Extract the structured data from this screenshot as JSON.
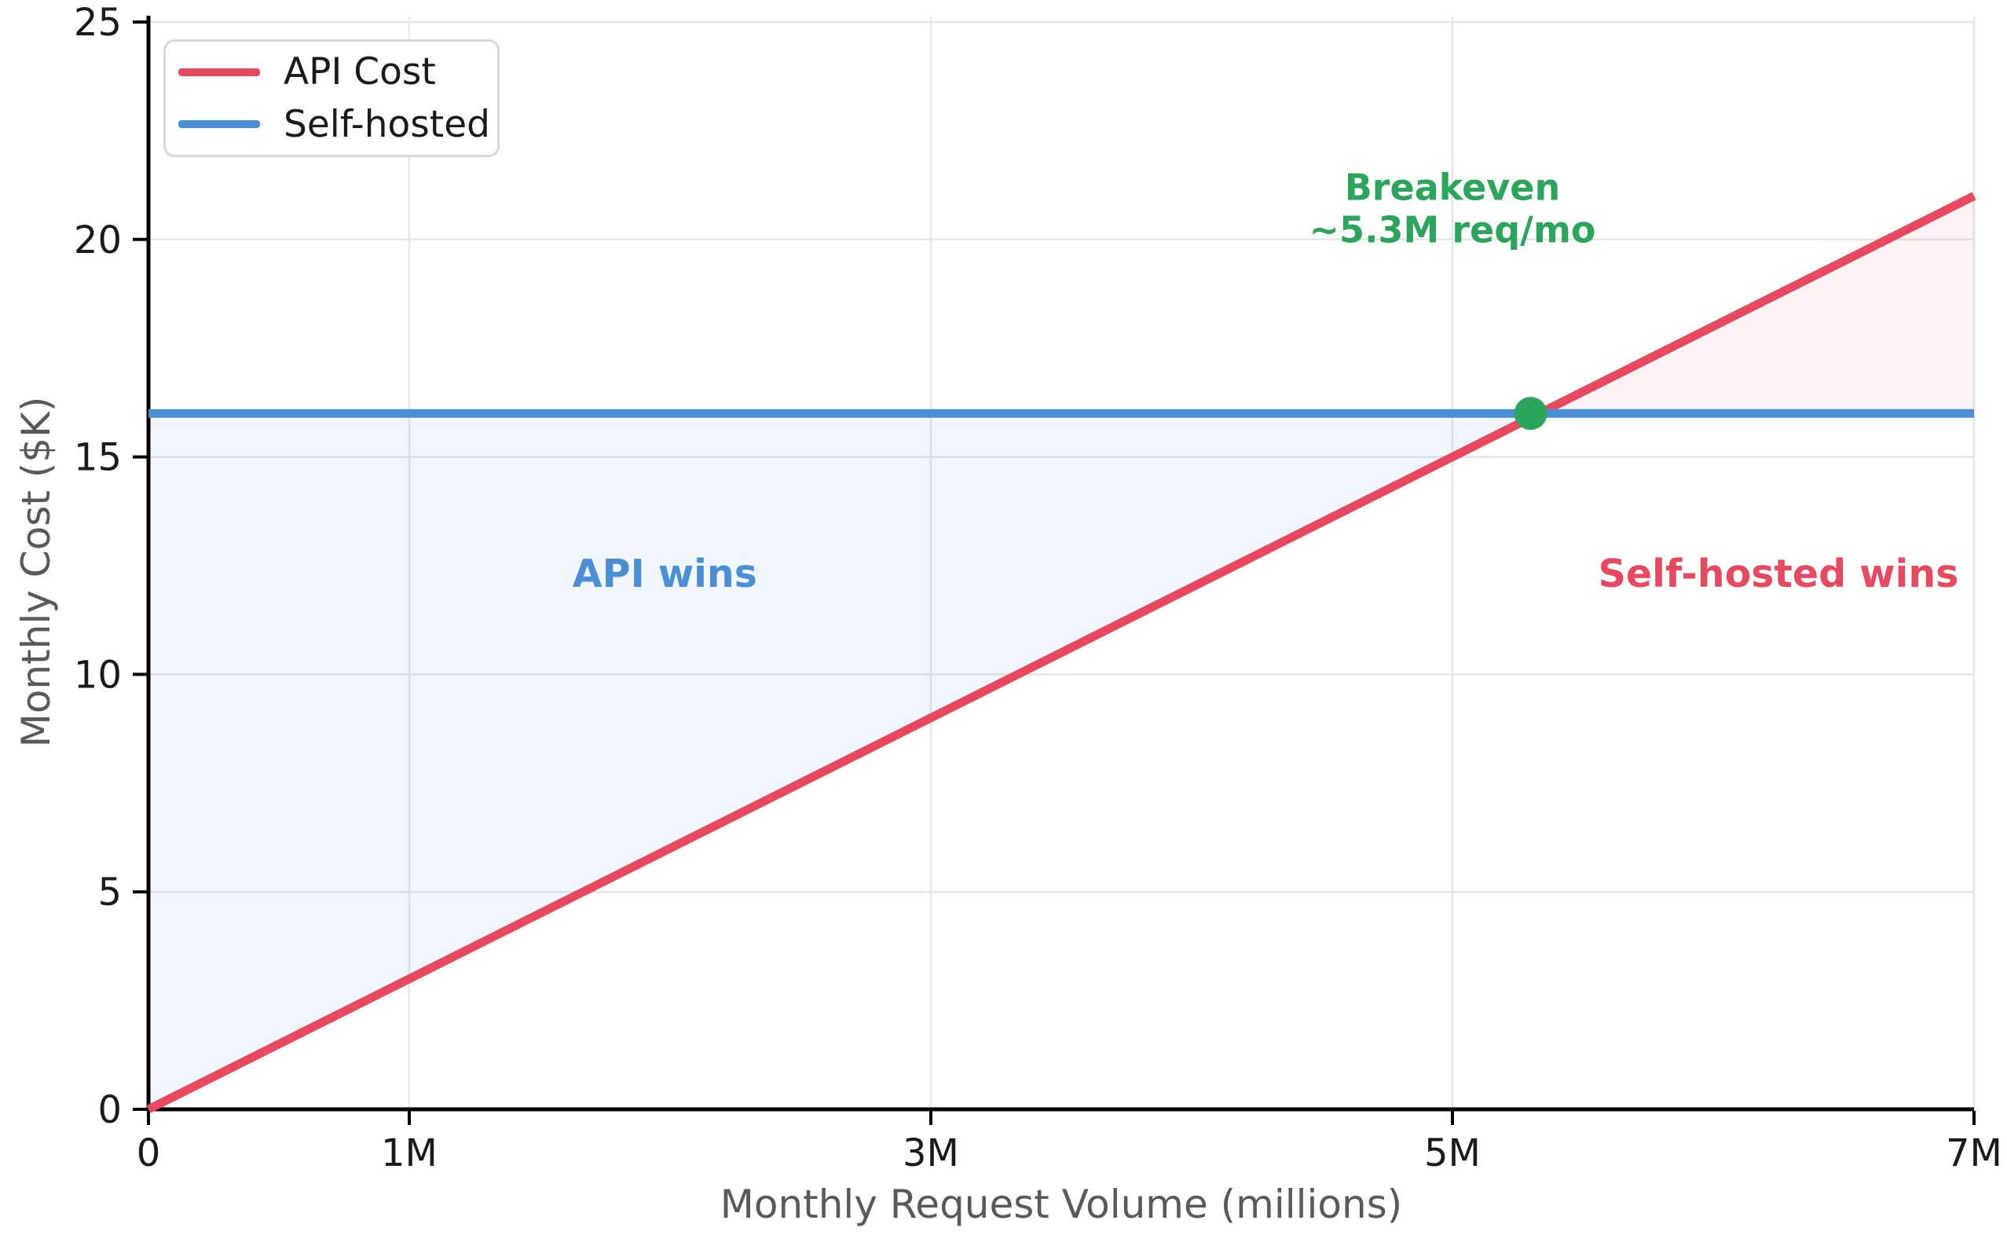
{
  "chart_data": {
    "type": "line",
    "xlabel": "Monthly Request Volume (millions)",
    "ylabel": "Monthly Cost ($K)",
    "xlim": [
      0,
      7
    ],
    "ylim": [
      0,
      25
    ],
    "grid": true,
    "xticks": {
      "values": [
        0,
        1,
        3,
        5,
        7
      ],
      "labels": [
        "0",
        "1M",
        "3M",
        "5M",
        "7M"
      ]
    },
    "yticks": {
      "values": [
        0,
        5,
        10,
        15,
        20,
        25
      ],
      "labels": [
        "0",
        "5",
        "10",
        "15",
        "20",
        "25"
      ]
    },
    "series": [
      {
        "name": "API Cost",
        "color": "#E8495F",
        "x": [
          0,
          7
        ],
        "y": [
          0,
          21
        ]
      },
      {
        "name": "Self-hosted",
        "color": "#4A8FD5",
        "x": [
          0,
          7
        ],
        "y": [
          16,
          16
        ]
      }
    ],
    "fills": [
      {
        "name": "api-wins-region",
        "region": "api-below-selfhosted",
        "color": "rgba(74,143,213,0.08)"
      },
      {
        "name": "selfhosted-wins-region",
        "region": "api-above-selfhosted",
        "color": "rgba(232,73,95,0.065)"
      }
    ],
    "breakeven_marker": {
      "x": 5.3,
      "y": 16,
      "color": "#2CA55C",
      "radius": 21
    },
    "annotations": [
      {
        "id": "breakeven-label",
        "lines": [
          "Breakeven",
          "~5.3M req/mo"
        ],
        "x": 5.0,
        "y": 20.7,
        "color": "#2CA55C"
      },
      {
        "id": "api-wins-label",
        "lines": [
          "API wins"
        ],
        "x": 1.98,
        "y": 12.3,
        "color": "#4A8FD5"
      },
      {
        "id": "selfhosted-wins-label",
        "lines": [
          "Self-hosted wins"
        ],
        "x": 6.25,
        "y": 12.3,
        "color": "#E8495F"
      }
    ],
    "legend": {
      "position": "top-left"
    },
    "colors": {
      "grid": "#e5e5e5",
      "spine": "#000000",
      "tick_label": "#1a1a1a",
      "axis_label": "#595959",
      "background": "#ffffff"
    }
  }
}
